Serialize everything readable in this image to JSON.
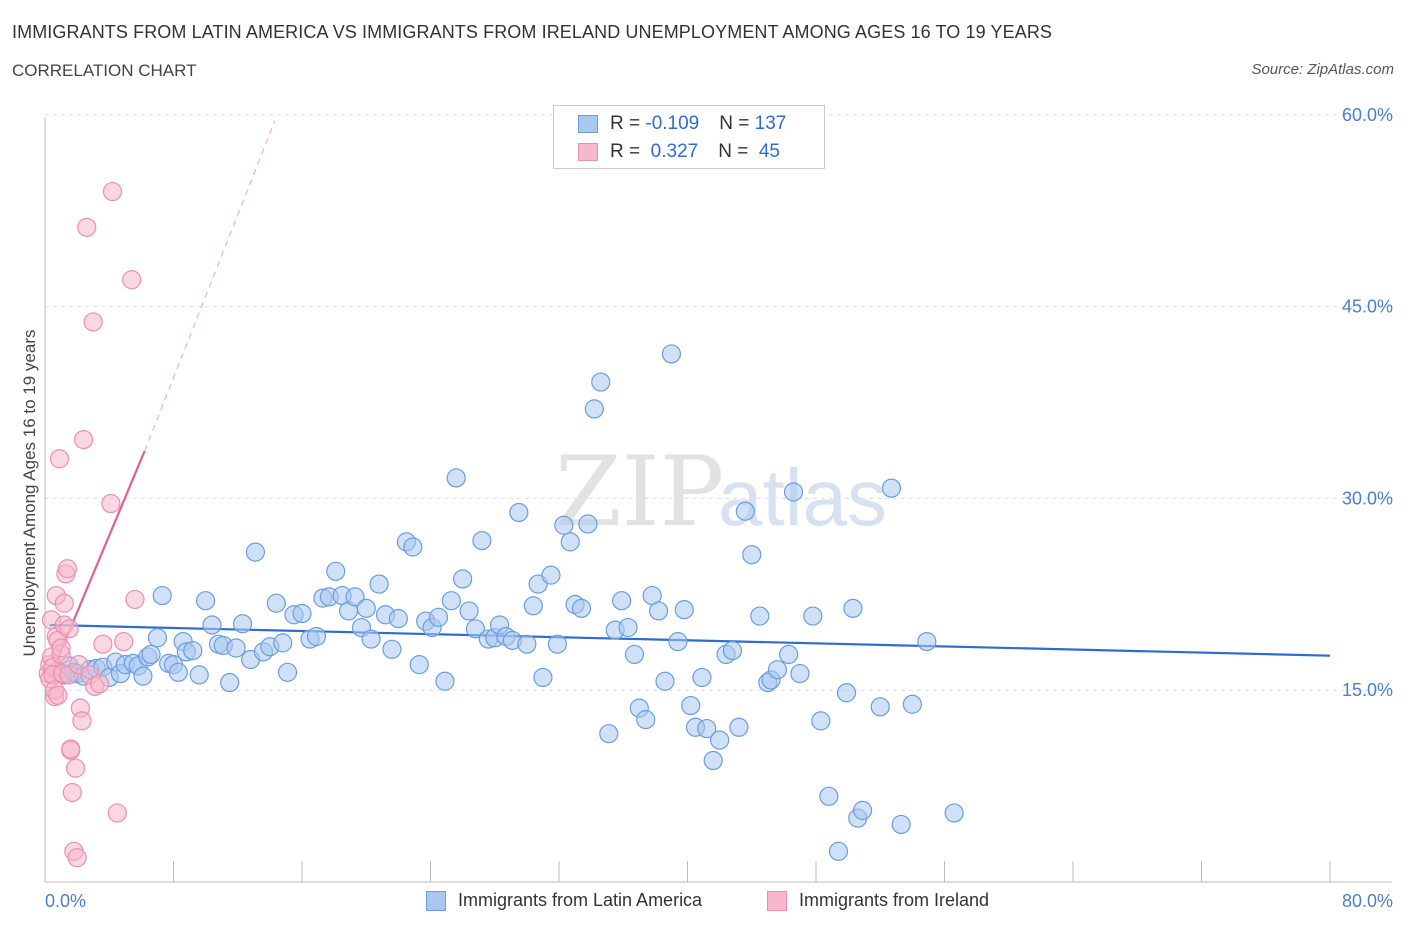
{
  "header": {
    "title": "IMMIGRANTS FROM LATIN AMERICA VS IMMIGRANTS FROM IRELAND UNEMPLOYMENT AMONG AGES 16 TO 19 YEARS",
    "subtitle": "CORRELATION CHART",
    "source": "Source: ZipAtlas.com"
  },
  "watermark": "ZIPatlas",
  "legend_top": {
    "rows": [
      {
        "r_label": "R = ",
        "r_value": "-0.109",
        "n_label": "N = ",
        "n_value": "137"
      },
      {
        "r_label": "R = ",
        "r_value": " 0.327",
        "n_label": "N = ",
        "n_value": " 45"
      }
    ]
  },
  "colors": {
    "blue_fill": "#a9c8f0",
    "blue_stroke": "#6a9de0",
    "blue_line": "#2f6cd0",
    "pink_fill": "#f6b8cb",
    "pink_stroke": "#ec8fae",
    "pink_line": "#e0608e",
    "grid": "#dddddd",
    "tick_text": "#4a7fd0"
  },
  "chart_data": {
    "type": "scatter",
    "title": "IMMIGRANTS FROM LATIN AMERICA VS IMMIGRANTS FROM IRELAND UNEMPLOYMENT AMONG AGES 16 TO 19 YEARS",
    "ylabel": "Unemployment Among Ages 16 to 19 years",
    "xlim": [
      0,
      80
    ],
    "ylim": [
      0,
      60
    ],
    "x_tick_labels": [
      "0.0%",
      "80.0%"
    ],
    "y_ticks": [
      15,
      30,
      45,
      60
    ],
    "y_tick_labels": [
      "15.0%",
      "30.0%",
      "45.0%",
      "60.0%"
    ],
    "grid": true,
    "legend_position": "bottom",
    "series": [
      {
        "name": "Immigrants from Latin America",
        "color": "#a9c8f0",
        "trend": {
          "x": [
            0.3,
            80.0
          ],
          "y": [
            20.1,
            17.7
          ]
        },
        "points": [
          [
            0.8,
            16.5
          ],
          [
            1.2,
            16.2
          ],
          [
            1.5,
            16.9
          ],
          [
            1.8,
            16.4
          ],
          [
            2.0,
            16.3
          ],
          [
            2.4,
            16.1
          ],
          [
            2.8,
            16.6
          ],
          [
            3.2,
            16.7
          ],
          [
            3.6,
            16.8
          ],
          [
            4.0,
            16.0
          ],
          [
            4.4,
            17.2
          ],
          [
            4.7,
            16.3
          ],
          [
            5.0,
            17.0
          ],
          [
            5.5,
            17.1
          ],
          [
            5.8,
            16.9
          ],
          [
            6.1,
            16.1
          ],
          [
            6.4,
            17.6
          ],
          [
            6.6,
            17.8
          ],
          [
            7.0,
            19.1
          ],
          [
            7.3,
            22.4
          ],
          [
            7.7,
            17.1
          ],
          [
            8.0,
            17.0
          ],
          [
            8.3,
            16.4
          ],
          [
            8.6,
            18.8
          ],
          [
            8.8,
            18.0
          ],
          [
            9.2,
            18.1
          ],
          [
            9.6,
            16.2
          ],
          [
            10.0,
            22.0
          ],
          [
            10.4,
            20.1
          ],
          [
            10.8,
            18.6
          ],
          [
            11.1,
            18.5
          ],
          [
            11.5,
            15.6
          ],
          [
            11.9,
            18.3
          ],
          [
            12.3,
            20.2
          ],
          [
            12.8,
            17.4
          ],
          [
            13.1,
            25.8
          ],
          [
            13.6,
            18.0
          ],
          [
            14.0,
            18.4
          ],
          [
            14.4,
            21.8
          ],
          [
            14.8,
            18.7
          ],
          [
            15.1,
            16.4
          ],
          [
            15.5,
            20.9
          ],
          [
            16.0,
            21.0
          ],
          [
            16.5,
            19.0
          ],
          [
            16.9,
            19.2
          ],
          [
            17.3,
            22.2
          ],
          [
            17.7,
            22.3
          ],
          [
            18.1,
            24.3
          ],
          [
            18.5,
            22.4
          ],
          [
            18.9,
            21.2
          ],
          [
            19.3,
            22.3
          ],
          [
            19.7,
            19.9
          ],
          [
            20.0,
            21.4
          ],
          [
            20.3,
            19.0
          ],
          [
            20.8,
            23.3
          ],
          [
            21.2,
            20.9
          ],
          [
            21.6,
            18.2
          ],
          [
            22.0,
            20.6
          ],
          [
            22.5,
            26.6
          ],
          [
            22.9,
            26.2
          ],
          [
            23.3,
            17.0
          ],
          [
            23.7,
            20.4
          ],
          [
            24.1,
            19.9
          ],
          [
            24.5,
            20.7
          ],
          [
            24.9,
            15.7
          ],
          [
            25.3,
            22.0
          ],
          [
            25.6,
            31.6
          ],
          [
            26.0,
            23.7
          ],
          [
            26.4,
            21.2
          ],
          [
            26.8,
            19.8
          ],
          [
            27.2,
            26.7
          ],
          [
            27.6,
            19.0
          ],
          [
            28.0,
            19.1
          ],
          [
            28.3,
            20.1
          ],
          [
            28.7,
            19.2
          ],
          [
            29.1,
            18.9
          ],
          [
            29.5,
            28.9
          ],
          [
            30.0,
            18.6
          ],
          [
            30.4,
            21.6
          ],
          [
            30.7,
            23.3
          ],
          [
            31.0,
            16.0
          ],
          [
            31.5,
            24.0
          ],
          [
            31.9,
            18.6
          ],
          [
            32.3,
            27.9
          ],
          [
            32.7,
            26.6
          ],
          [
            33.0,
            21.7
          ],
          [
            33.4,
            21.4
          ],
          [
            33.8,
            28.0
          ],
          [
            34.2,
            37.0
          ],
          [
            34.6,
            39.1
          ],
          [
            35.1,
            11.6
          ],
          [
            35.5,
            19.7
          ],
          [
            35.9,
            22.0
          ],
          [
            36.3,
            19.9
          ],
          [
            36.7,
            17.8
          ],
          [
            37.0,
            13.6
          ],
          [
            37.4,
            12.7
          ],
          [
            37.8,
            22.4
          ],
          [
            38.2,
            21.2
          ],
          [
            38.6,
            15.7
          ],
          [
            39.0,
            41.3
          ],
          [
            39.4,
            18.8
          ],
          [
            39.8,
            21.3
          ],
          [
            40.2,
            13.8
          ],
          [
            40.5,
            12.1
          ],
          [
            40.9,
            16.0
          ],
          [
            41.2,
            12.0
          ],
          [
            41.6,
            9.5
          ],
          [
            42.0,
            11.1
          ],
          [
            42.4,
            17.8
          ],
          [
            42.8,
            18.1
          ],
          [
            43.2,
            12.1
          ],
          [
            43.6,
            29.0
          ],
          [
            44.0,
            25.6
          ],
          [
            44.5,
            20.8
          ],
          [
            45.0,
            15.6
          ],
          [
            45.2,
            15.8
          ],
          [
            45.6,
            16.6
          ],
          [
            46.3,
            17.8
          ],
          [
            46.6,
            30.5
          ],
          [
            47.0,
            16.3
          ],
          [
            47.8,
            20.8
          ],
          [
            48.3,
            12.6
          ],
          [
            48.8,
            6.7
          ],
          [
            49.4,
            2.4
          ],
          [
            49.9,
            14.8
          ],
          [
            50.3,
            21.4
          ],
          [
            50.6,
            5.0
          ],
          [
            50.9,
            5.6
          ],
          [
            52.0,
            13.7
          ],
          [
            52.7,
            30.8
          ],
          [
            53.3,
            4.5
          ],
          [
            54.0,
            13.9
          ],
          [
            54.9,
            18.8
          ],
          [
            56.6,
            5.4
          ]
        ]
      },
      {
        "name": "Immigrants from Ireland",
        "color": "#f6b8cb",
        "trend": {
          "x": [
            0.3,
            6.2
          ],
          "y": [
            16.0,
            33.7
          ],
          "dashed_to": [
            14.3,
            59.5
          ]
        },
        "points": [
          [
            0.2,
            16.3
          ],
          [
            0.3,
            17.0
          ],
          [
            0.3,
            15.9
          ],
          [
            0.4,
            20.5
          ],
          [
            0.4,
            17.6
          ],
          [
            0.5,
            16.8
          ],
          [
            0.5,
            16.2
          ],
          [
            0.6,
            14.5
          ],
          [
            0.6,
            15.0
          ],
          [
            0.7,
            22.4
          ],
          [
            0.7,
            19.2
          ],
          [
            0.8,
            18.9
          ],
          [
            0.8,
            14.6
          ],
          [
            0.9,
            33.1
          ],
          [
            1.0,
            17.8
          ],
          [
            1.0,
            18.3
          ],
          [
            1.1,
            16.3
          ],
          [
            1.2,
            21.8
          ],
          [
            1.2,
            20.1
          ],
          [
            1.3,
            24.1
          ],
          [
            1.4,
            24.5
          ],
          [
            1.5,
            19.8
          ],
          [
            1.5,
            16.2
          ],
          [
            1.6,
            10.3
          ],
          [
            1.6,
            10.4
          ],
          [
            1.7,
            7.0
          ],
          [
            1.8,
            2.4
          ],
          [
            1.9,
            8.9
          ],
          [
            2.0,
            1.9
          ],
          [
            2.1,
            17.0
          ],
          [
            2.2,
            13.6
          ],
          [
            2.3,
            12.6
          ],
          [
            2.4,
            34.6
          ],
          [
            2.6,
            51.2
          ],
          [
            2.8,
            16.2
          ],
          [
            3.0,
            43.8
          ],
          [
            3.1,
            15.3
          ],
          [
            3.4,
            15.5
          ],
          [
            3.6,
            18.6
          ],
          [
            4.1,
            29.6
          ],
          [
            4.2,
            54.0
          ],
          [
            4.5,
            5.4
          ],
          [
            4.9,
            18.8
          ],
          [
            5.4,
            47.1
          ],
          [
            5.6,
            22.1
          ]
        ]
      }
    ]
  },
  "bottom_legend": {
    "items": [
      {
        "label": "Immigrants from Latin America"
      },
      {
        "label": "Immigrants from Ireland"
      }
    ]
  }
}
